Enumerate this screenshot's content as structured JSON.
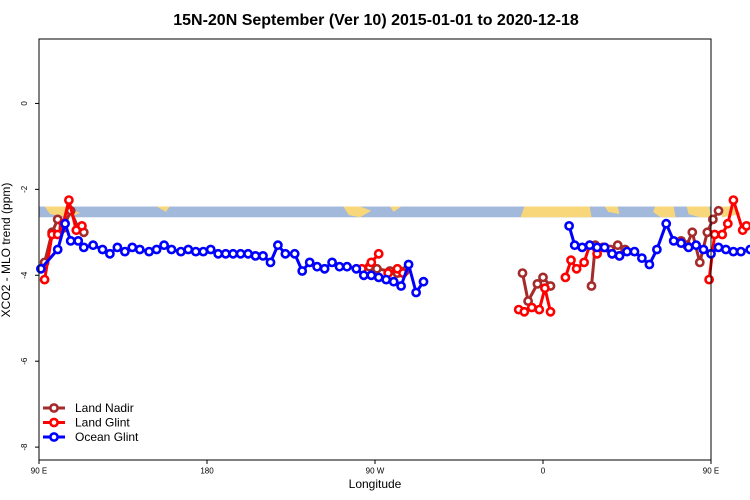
{
  "chart_data": {
    "type": "line",
    "title": "15N-20N September (Ver 10)   2015-01-01 to 2020-12-18",
    "xlabel": "Longitude",
    "ylabel": "XCO2 - MLO trend (ppm)",
    "xlim": [
      90,
      450
    ],
    "ylim": [
      -8.3,
      1.5
    ],
    "x_ticks": [
      {
        "value": 90,
        "label": "90 E"
      },
      {
        "value": 180,
        "label": "180"
      },
      {
        "value": 270,
        "label": "90 W"
      },
      {
        "value": 360,
        "label": "0"
      },
      {
        "value": 450,
        "label": "90 E"
      },
      {
        "value": 540,
        "label": "180"
      }
    ],
    "y_ticks": [
      {
        "value": 0,
        "label": "0"
      },
      {
        "value": -2,
        "label": "-2"
      },
      {
        "value": -4,
        "label": "-4"
      },
      {
        "value": -6,
        "label": "-6"
      },
      {
        "value": -8,
        "label": "-8"
      }
    ],
    "legend_position": "bottom-left",
    "map_strip": {
      "y_top": -2.4,
      "y_bottom": -2.65,
      "ocean_color": "#a3b9dc",
      "land_color": "#f7d77a"
    },
    "series": [
      {
        "name": "Land Nadir",
        "color": "#a52a2a",
        "segments": [
          [
            [
              93,
              -3.7
            ],
            [
              97,
              -3.0
            ],
            [
              100,
              -2.7
            ],
            [
              103,
              -2.9
            ],
            [
              107,
              -2.5
            ],
            [
              111,
              -2.9
            ],
            [
              114,
              -3.0
            ]
          ],
          [
            [
              267,
              -3.8
            ],
            [
              271,
              -3.85
            ],
            [
              278,
              -3.9
            ],
            [
              282,
              -3.95
            ],
            [
              286,
              -3.9
            ]
          ],
          [
            [
              349,
              -3.95
            ],
            [
              352,
              -4.6
            ],
            [
              357,
              -4.2
            ],
            [
              360,
              -4.05
            ],
            [
              364,
              -4.25
            ]
          ],
          [
            [
              386,
              -4.25
            ],
            [
              388,
              -3.3
            ],
            [
              392,
              -3.35
            ],
            [
              396,
              -3.4
            ],
            [
              400,
              -3.3
            ],
            [
              404,
              -3.4
            ]
          ],
          [
            [
              434,
              -3.2
            ],
            [
              437,
              -3.3
            ],
            [
              440,
              -3.0
            ],
            [
              444,
              -3.7
            ],
            [
              448,
              -3.0
            ],
            [
              451,
              -2.7
            ],
            [
              454,
              -2.5
            ]
          ]
        ]
      },
      {
        "name": "Land Glint",
        "color": "#ff0000",
        "segments": [
          [
            [
              93,
              -4.1
            ],
            [
              97,
              -3.05
            ],
            [
              100,
              -3.05
            ],
            [
              103,
              -2.8
            ],
            [
              106,
              -2.25
            ],
            [
              110,
              -2.95
            ],
            [
              113,
              -2.85
            ]
          ],
          [
            [
              263,
              -3.85
            ],
            [
              268,
              -3.7
            ],
            [
              272,
              -3.5
            ]
          ],
          [
            [
              277,
              -3.95
            ],
            [
              282,
              -3.85
            ],
            [
              285,
              -3.95
            ]
          ],
          [
            [
              347,
              -4.8
            ],
            [
              350,
              -4.85
            ],
            [
              354,
              -4.75
            ],
            [
              358,
              -4.8
            ],
            [
              361,
              -4.3
            ],
            [
              364,
              -4.85
            ]
          ],
          [
            [
              372,
              -4.05
            ],
            [
              375,
              -3.65
            ],
            [
              378,
              -3.85
            ],
            [
              382,
              -3.7
            ],
            [
              385,
              -3.3
            ],
            [
              389,
              -3.5
            ],
            [
              393,
              -3.35
            ],
            [
              397,
              -3.5
            ],
            [
              401,
              -3.55
            ]
          ],
          [
            [
              449,
              -4.1
            ],
            [
              452,
              -3.05
            ],
            [
              456,
              -3.05
            ],
            [
              459,
              -2.8
            ],
            [
              462,
              -2.25
            ],
            [
              467,
              -2.95
            ],
            [
              469,
              -2.85
            ]
          ]
        ]
      },
      {
        "name": "Ocean Glint",
        "color": "#0000ff",
        "segments": [
          [
            [
              91,
              -3.85
            ],
            [
              100,
              -3.4
            ],
            [
              104,
              -2.8
            ],
            [
              107,
              -3.2
            ],
            [
              111,
              -3.2
            ],
            [
              114,
              -3.35
            ],
            [
              119,
              -3.3
            ],
            [
              124,
              -3.4
            ],
            [
              128,
              -3.5
            ],
            [
              132,
              -3.35
            ],
            [
              136,
              -3.45
            ],
            [
              140,
              -3.35
            ],
            [
              144,
              -3.4
            ],
            [
              149,
              -3.45
            ],
            [
              153,
              -3.4
            ],
            [
              157,
              -3.3
            ],
            [
              161,
              -3.4
            ],
            [
              166,
              -3.45
            ],
            [
              170,
              -3.4
            ],
            [
              174,
              -3.45
            ],
            [
              178,
              -3.45
            ],
            [
              182,
              -3.4
            ],
            [
              186,
              -3.5
            ],
            [
              190,
              -3.5
            ],
            [
              194,
              -3.5
            ],
            [
              198,
              -3.5
            ],
            [
              202,
              -3.5
            ],
            [
              206,
              -3.55
            ],
            [
              210,
              -3.55
            ],
            [
              214,
              -3.7
            ],
            [
              218,
              -3.3
            ],
            [
              222,
              -3.5
            ],
            [
              227,
              -3.5
            ],
            [
              231,
              -3.9
            ],
            [
              235,
              -3.7
            ],
            [
              239,
              -3.8
            ],
            [
              243,
              -3.85
            ],
            [
              247,
              -3.7
            ],
            [
              251,
              -3.8
            ],
            [
              255,
              -3.8
            ],
            [
              260,
              -3.85
            ],
            [
              264,
              -4.0
            ],
            [
              268,
              -4.0
            ],
            [
              272,
              -4.05
            ],
            [
              276,
              -4.1
            ],
            [
              280,
              -4.15
            ],
            [
              284,
              -4.25
            ],
            [
              288,
              -3.75
            ],
            [
              292,
              -4.4
            ],
            [
              296,
              -4.15
            ]
          ],
          [
            [
              374,
              -2.85
            ],
            [
              377,
              -3.3
            ],
            [
              381,
              -3.35
            ],
            [
              385,
              -3.3
            ],
            [
              389,
              -3.35
            ],
            [
              393,
              -3.35
            ],
            [
              397,
              -3.5
            ],
            [
              401,
              -3.55
            ],
            [
              405,
              -3.45
            ],
            [
              409,
              -3.45
            ],
            [
              413,
              -3.6
            ],
            [
              417,
              -3.75
            ],
            [
              421,
              -3.4
            ],
            [
              426,
              -2.8
            ],
            [
              430,
              -3.2
            ],
            [
              434,
              -3.25
            ],
            [
              438,
              -3.35
            ],
            [
              442,
              -3.3
            ],
            [
              446,
              -3.4
            ],
            [
              450,
              -3.5
            ],
            [
              454,
              -3.35
            ],
            [
              458,
              -3.4
            ],
            [
              462,
              -3.45
            ],
            [
              466,
              -3.45
            ],
            [
              471,
              -3.4
            ],
            [
              475,
              -3.45
            ],
            [
              479,
              -3.45
            ],
            [
              483,
              -3.45
            ],
            [
              487,
              -3.4
            ],
            [
              491,
              -3.3
            ]
          ]
        ]
      }
    ]
  }
}
